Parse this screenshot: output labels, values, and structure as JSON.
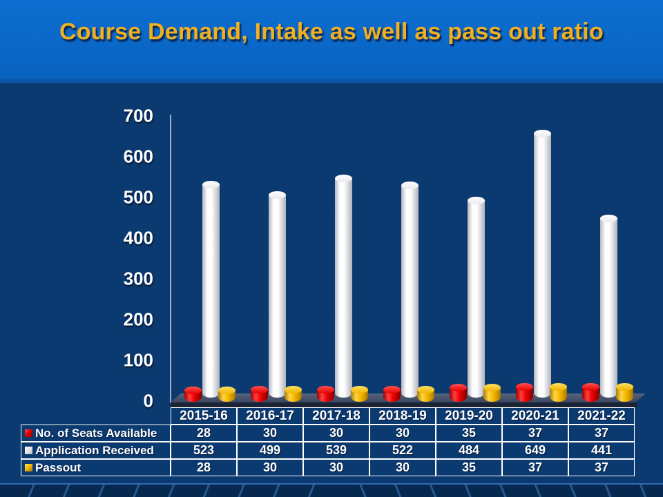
{
  "slide": {
    "title": "Course Demand, Intake as well as pass out ratio"
  },
  "chart_data": {
    "type": "bar",
    "style": "3d-cylinder-columns",
    "title": "Course Demand, Intake as well as pass out ratio",
    "categories": [
      "2015-16",
      "2016-17",
      "2017-18",
      "2018-19",
      "2019-20",
      "2020-21",
      "2021-22"
    ],
    "series": [
      {
        "name": "No. of Seats Available",
        "color": "#e80000",
        "values": [
          28,
          30,
          30,
          30,
          35,
          37,
          37
        ]
      },
      {
        "name": "Application Received",
        "color": "#ffffff",
        "values": [
          523,
          499,
          539,
          522,
          484,
          649,
          441
        ]
      },
      {
        "name": "Passout",
        "color": "#ffc000",
        "values": [
          28,
          30,
          30,
          30,
          35,
          37,
          37
        ]
      }
    ],
    "ylim": [
      0,
      700
    ],
    "yticks": [
      0,
      100,
      200,
      300,
      400,
      500,
      600,
      700
    ],
    "grid": false,
    "legend_position": "data-table-left-column"
  },
  "colors": {
    "banner_blue": "#0a66c6",
    "background_navy": "#0b3a70",
    "title_gold": "#efb021",
    "table_border": "#ffffff",
    "seats_red": "#e80000",
    "applications_white": "#ffffff",
    "passout_yellow": "#ffc000",
    "chart_floor": "#3b4760"
  }
}
